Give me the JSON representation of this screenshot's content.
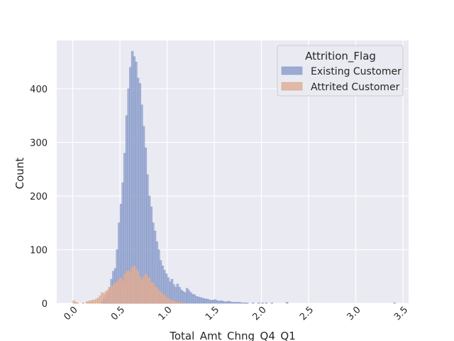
{
  "chart_data": {
    "type": "histogram",
    "title": "",
    "xlabel": "Total_Amt_Chng_Q4_Q1",
    "ylabel": "Count",
    "xlim": [
      -0.17,
      3.56
    ],
    "ylim": [
      0,
      490
    ],
    "xticks": [
      0.0,
      0.5,
      1.0,
      1.5,
      2.0,
      2.5,
      3.0,
      3.5
    ],
    "xtick_labels": [
      "0.0",
      "0.5",
      "1.0",
      "1.5",
      "2.0",
      "2.5",
      "3.0",
      "3.5"
    ],
    "yticks": [
      0,
      100,
      200,
      300,
      400
    ],
    "ytick_labels": [
      "0",
      "100",
      "200",
      "300",
      "400"
    ],
    "grid": true,
    "legend": {
      "title": "Attrition_Flag",
      "placement": "top-right"
    },
    "bin_width": 0.0226,
    "series": [
      {
        "name": "Existing Customer",
        "color": "#8ea0cd",
        "edge": "#7f91c4",
        "bins": [
          [
            0.3,
            5
          ],
          [
            0.32,
            9
          ],
          [
            0.34,
            14
          ],
          [
            0.36,
            20
          ],
          [
            0.38,
            30
          ],
          [
            0.4,
            45
          ],
          [
            0.42,
            60
          ],
          [
            0.44,
            65
          ],
          [
            0.46,
            100
          ],
          [
            0.48,
            150
          ],
          [
            0.5,
            185
          ],
          [
            0.52,
            225
          ],
          [
            0.54,
            280
          ],
          [
            0.56,
            350
          ],
          [
            0.58,
            400
          ],
          [
            0.6,
            440
          ],
          [
            0.62,
            470
          ],
          [
            0.64,
            460
          ],
          [
            0.66,
            450
          ],
          [
            0.68,
            420
          ],
          [
            0.7,
            410
          ],
          [
            0.72,
            370
          ],
          [
            0.74,
            330
          ],
          [
            0.76,
            290
          ],
          [
            0.78,
            240
          ],
          [
            0.8,
            200
          ],
          [
            0.82,
            180
          ],
          [
            0.84,
            150
          ],
          [
            0.86,
            135
          ],
          [
            0.88,
            115
          ],
          [
            0.9,
            100
          ],
          [
            0.92,
            80
          ],
          [
            0.94,
            70
          ],
          [
            0.96,
            62
          ],
          [
            0.98,
            55
          ],
          [
            1.0,
            48
          ],
          [
            1.02,
            40
          ],
          [
            1.04,
            45
          ],
          [
            1.06,
            35
          ],
          [
            1.08,
            30
          ],
          [
            1.1,
            36
          ],
          [
            1.12,
            30
          ],
          [
            1.14,
            25
          ],
          [
            1.16,
            22
          ],
          [
            1.18,
            20
          ],
          [
            1.2,
            28
          ],
          [
            1.22,
            24
          ],
          [
            1.24,
            20
          ],
          [
            1.26,
            17
          ],
          [
            1.28,
            16
          ],
          [
            1.3,
            13
          ],
          [
            1.32,
            12
          ],
          [
            1.34,
            11
          ],
          [
            1.36,
            10
          ],
          [
            1.38,
            9
          ],
          [
            1.4,
            8
          ],
          [
            1.42,
            8
          ],
          [
            1.44,
            6
          ],
          [
            1.46,
            6
          ],
          [
            1.48,
            6
          ],
          [
            1.5,
            7
          ],
          [
            1.52,
            5
          ],
          [
            1.54,
            4
          ],
          [
            1.56,
            5
          ],
          [
            1.58,
            4
          ],
          [
            1.6,
            3
          ],
          [
            1.62,
            3
          ],
          [
            1.64,
            4
          ],
          [
            1.66,
            3
          ],
          [
            1.68,
            2
          ],
          [
            1.7,
            2
          ],
          [
            1.72,
            2
          ],
          [
            1.74,
            2
          ],
          [
            1.76,
            2
          ],
          [
            1.78,
            1
          ],
          [
            1.8,
            1
          ],
          [
            1.82,
            1
          ],
          [
            1.84,
            1
          ],
          [
            1.9,
            1
          ],
          [
            1.96,
            1
          ],
          [
            2.0,
            1
          ],
          [
            2.04,
            1
          ],
          [
            2.1,
            1
          ],
          [
            2.26,
            2
          ],
          [
            3.4,
            1
          ]
        ]
      },
      {
        "name": "Attrited Customer",
        "color": "#e1b09a",
        "edge": "#d49a80",
        "bins": [
          [
            0.0,
            5
          ],
          [
            0.02,
            2
          ],
          [
            0.04,
            1
          ],
          [
            0.1,
            1
          ],
          [
            0.14,
            3
          ],
          [
            0.16,
            4
          ],
          [
            0.18,
            5
          ],
          [
            0.2,
            6
          ],
          [
            0.22,
            6
          ],
          [
            0.24,
            8
          ],
          [
            0.26,
            10
          ],
          [
            0.28,
            14
          ],
          [
            0.3,
            20
          ],
          [
            0.32,
            18
          ],
          [
            0.34,
            22
          ],
          [
            0.36,
            25
          ],
          [
            0.38,
            30
          ],
          [
            0.4,
            32
          ],
          [
            0.42,
            35
          ],
          [
            0.44,
            38
          ],
          [
            0.46,
            40
          ],
          [
            0.48,
            45
          ],
          [
            0.5,
            48
          ],
          [
            0.52,
            42
          ],
          [
            0.54,
            55
          ],
          [
            0.56,
            60
          ],
          [
            0.58,
            62
          ],
          [
            0.6,
            58
          ],
          [
            0.62,
            68
          ],
          [
            0.64,
            70
          ],
          [
            0.66,
            65
          ],
          [
            0.68,
            60
          ],
          [
            0.7,
            50
          ],
          [
            0.72,
            45
          ],
          [
            0.74,
            50
          ],
          [
            0.76,
            55
          ],
          [
            0.78,
            50
          ],
          [
            0.8,
            48
          ],
          [
            0.82,
            40
          ],
          [
            0.84,
            38
          ],
          [
            0.86,
            32
          ],
          [
            0.88,
            30
          ],
          [
            0.9,
            25
          ],
          [
            0.92,
            22
          ],
          [
            0.94,
            18
          ],
          [
            0.96,
            16
          ],
          [
            0.98,
            12
          ],
          [
            1.0,
            10
          ],
          [
            1.02,
            8
          ],
          [
            1.04,
            6
          ],
          [
            1.06,
            5
          ],
          [
            1.08,
            4
          ],
          [
            1.1,
            3
          ],
          [
            1.12,
            2
          ],
          [
            1.14,
            2
          ],
          [
            1.16,
            1
          ]
        ]
      }
    ]
  }
}
